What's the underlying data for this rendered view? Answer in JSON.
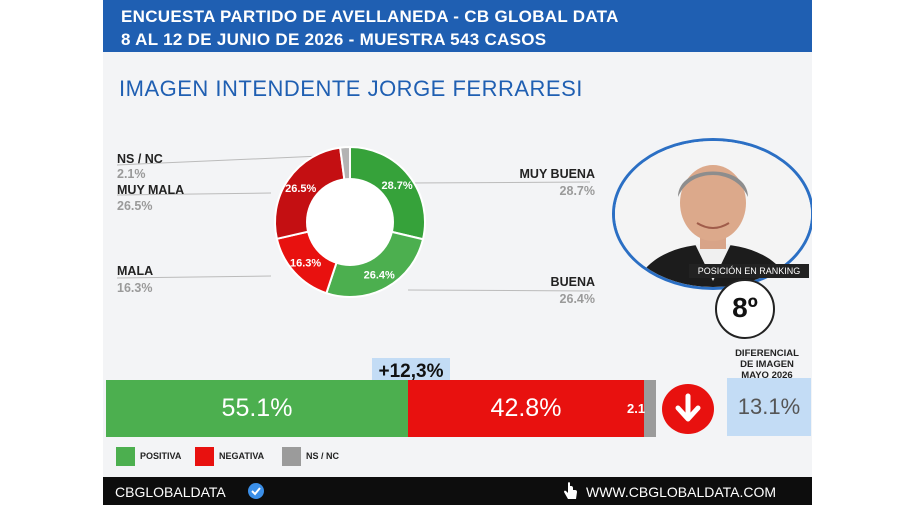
{
  "header": {
    "line1": "ENCUESTA PARTIDO DE AVELLANEDA - CB GLOBAL DATA",
    "line2": "8 AL 12 DE JUNIO DE 2026 - MUESTRA 543 CASOS"
  },
  "title": "IMAGEN INTENDENTE  JORGE FERRARESI",
  "chart_data": [
    {
      "type": "pie",
      "categories": [
        "MUY BUENA",
        "BUENA",
        "MALA",
        "MUY MALA",
        "NS / NC"
      ],
      "values": [
        28.7,
        26.4,
        16.3,
        26.5,
        2.1
      ],
      "display": [
        "28.7%",
        "26.4%",
        "16.3%",
        "26.5%",
        "2.1%"
      ],
      "colors": [
        "#36a23a",
        "#4caf4f",
        "#e8110f",
        "#c40f12",
        "#b3b3b3"
      ]
    },
    {
      "type": "bar",
      "orientation": "horizontal-stacked",
      "categories": [
        "POSITIVA",
        "NEGATIVA",
        "NS / NC"
      ],
      "values": [
        55.1,
        42.8,
        2.1
      ],
      "display": [
        "55.1%",
        "42.8%",
        "2.1"
      ],
      "colors": [
        "#4caf4f",
        "#e8110f",
        "#9b9b9b"
      ]
    }
  ],
  "delta": "+12,3%",
  "ranking": {
    "label": "POSICIÓN EN RANKING",
    "value": "8º"
  },
  "diferencial": {
    "label_lines": [
      "DIFERENCIAL",
      "DE IMAGEN",
      "MAYO 2026"
    ],
    "value": "13.1%"
  },
  "legend": [
    "POSITIVA",
    "NEGATIVA",
    "NS / NC"
  ],
  "footer": {
    "brand": "CBGLOBALDATA",
    "site": "WWW.CBGLOBALDATA.COM"
  },
  "icons": [
    "verified-badge-icon",
    "pointer-hand-icon",
    "down-arrow-icon"
  ]
}
